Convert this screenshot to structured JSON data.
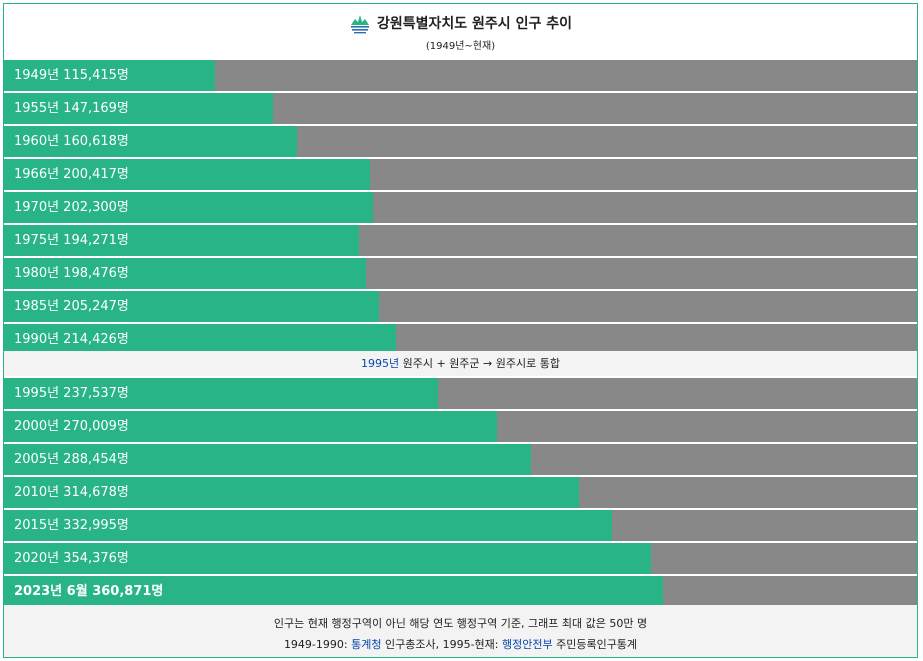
{
  "header": {
    "title": "강원특별자치도 원주시 인구 추이",
    "subtitle": "(1949년~현재)",
    "logo_icon": "wonju-city-emblem-icon"
  },
  "colors": {
    "bar": "#28b487",
    "track": "#888888",
    "border": "#28b487",
    "note_bg": "#f3f3f3",
    "link": "#0645ad"
  },
  "chart_data": {
    "type": "bar",
    "orientation": "horizontal",
    "title": "강원특별자치도 원주시 인구 추이",
    "subtitle": "(1949년~현재)",
    "xlim": [
      0,
      500000
    ],
    "unit": "명",
    "groups": [
      {
        "rows": [
          {
            "label": "1949년 115,415명",
            "year": 1949,
            "value": 115415
          },
          {
            "label": "1955년 147,169명",
            "year": 1955,
            "value": 147169
          },
          {
            "label": "1960년 160,618명",
            "year": 1960,
            "value": 160618
          },
          {
            "label": "1966년 200,417명",
            "year": 1966,
            "value": 200417
          },
          {
            "label": "1970년 202,300명",
            "year": 1970,
            "value": 202300
          },
          {
            "label": "1975년 194,271명",
            "year": 1975,
            "value": 194271
          },
          {
            "label": "1980년 198,476명",
            "year": 1980,
            "value": 198476
          },
          {
            "label": "1985년 205,247명",
            "year": 1985,
            "value": 205247
          },
          {
            "label": "1990년 214,426명",
            "year": 1990,
            "value": 214426
          }
        ]
      },
      {
        "rows": [
          {
            "label": "1995년 237,537명",
            "year": 1995,
            "value": 237537
          },
          {
            "label": "2000년 270,009명",
            "year": 2000,
            "value": 270009
          },
          {
            "label": "2005년 288,454명",
            "year": 2005,
            "value": 288454
          },
          {
            "label": "2010년 314,678명",
            "year": 2010,
            "value": 314678
          },
          {
            "label": "2015년 332,995명",
            "year": 2015,
            "value": 332995
          },
          {
            "label": "2020년 354,376명",
            "year": 2020,
            "value": 354376
          },
          {
            "label": "2023년 6월 360,871명",
            "year": 2023,
            "value": 360871,
            "bold": true
          }
        ]
      }
    ],
    "annotation": {
      "link_text": "1995년",
      "text": " 원주시 + 원주군 → 원주시로 통합"
    }
  },
  "footer": {
    "line1": "인구는 현재 행정구역이 아닌 해당 연도 행정구역 기준, 그래프 최대 값은 50만 명",
    "line2_prefix": "1949-1990: ",
    "line2_link1": "통계청",
    "line2_middle": " 인구총조사, 1995-현재: ",
    "line2_link2": "행정안전부",
    "line2_suffix": " 주민등록인구통계"
  }
}
